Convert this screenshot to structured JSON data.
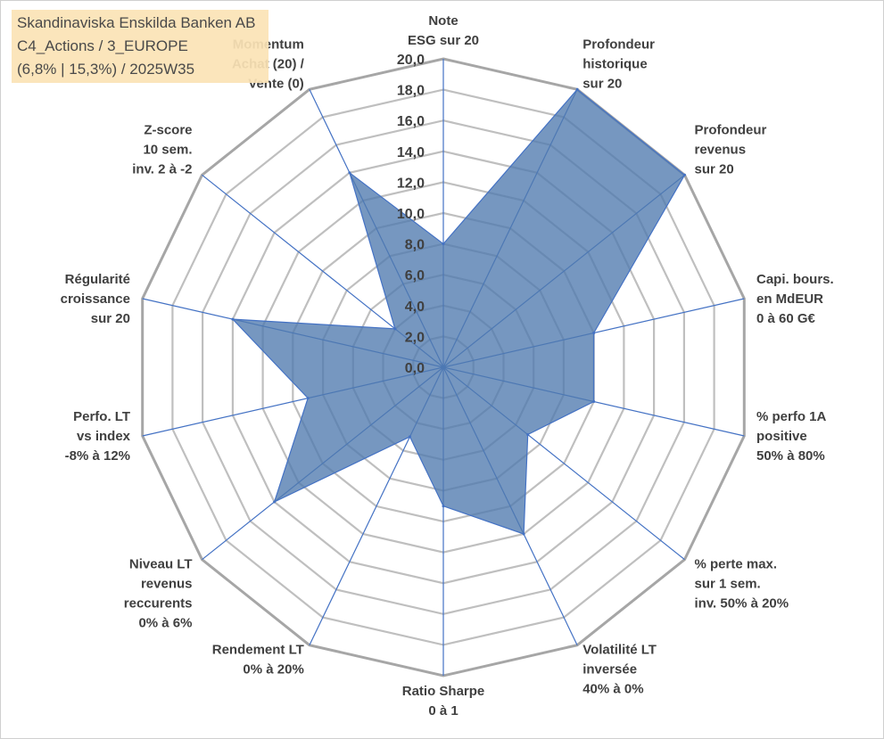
{
  "title_box": {
    "line1": "Skandinaviska Enskilda Banken AB",
    "line2": "C4_Actions / 3_EUROPE",
    "line3": "(6,8% | 15,3%) / 2025W35"
  },
  "chart_data": {
    "type": "radar",
    "rmin": 0,
    "rmax": 20,
    "tick_step": 2,
    "tick_labels": [
      "0,0",
      "2,0",
      "4,0",
      "6,0",
      "8,0",
      "10,0",
      "12,0",
      "14,0",
      "16,0",
      "18,0",
      "20,0"
    ],
    "grid": true,
    "legend": "none",
    "colors": {
      "fill": "#4f7aae",
      "fill_opacity": 0.78,
      "spoke": "#4472c4",
      "ring": "#bfbfbf",
      "outer_ring": "#a6a6a6"
    },
    "axes": [
      {
        "label": [
          "Note",
          "ESG sur 20"
        ],
        "value": 8.0
      },
      {
        "label": [
          "Profondeur",
          "historique",
          "sur 20"
        ],
        "value": 20.0
      },
      {
        "label": [
          "Profondeur",
          "revenus",
          "sur 20"
        ],
        "value": 20.0
      },
      {
        "label": [
          "Capi. bours.",
          "en MdEUR",
          "0 à 60 G€"
        ],
        "value": 10.0
      },
      {
        "label": [
          "% perfo 1A",
          "positive",
          "50% à 80%"
        ],
        "value": 10.0
      },
      {
        "label": [
          "% perte max.",
          "sur 1 sem.",
          "inv. 50% à 20%"
        ],
        "value": 7.0
      },
      {
        "label": [
          "Volatilité LT",
          "inversée",
          "40% à 0%"
        ],
        "value": 12.0
      },
      {
        "label": [
          "Ratio Sharpe",
          "0 à 1"
        ],
        "value": 9.0
      },
      {
        "label": [
          "Rendement LT",
          "0% à 20%"
        ],
        "value": 5.0
      },
      {
        "label": [
          "Niveau LT",
          "revenus",
          "reccurents",
          "0% à 6%"
        ],
        "value": 14.0
      },
      {
        "label": [
          "Perfo. LT",
          "vs index",
          "-8% à 12%"
        ],
        "value": 9.0
      },
      {
        "label": [
          "Régularité",
          "croissance",
          "sur 20"
        ],
        "value": 14.0
      },
      {
        "label": [
          "Z-score",
          "10 sem.",
          "inv. 2 à -2"
        ],
        "value": 4.0
      },
      {
        "label": [
          "Momentum",
          "Achat (20) /",
          "Vente (0)"
        ],
        "value": 14.0
      }
    ]
  }
}
